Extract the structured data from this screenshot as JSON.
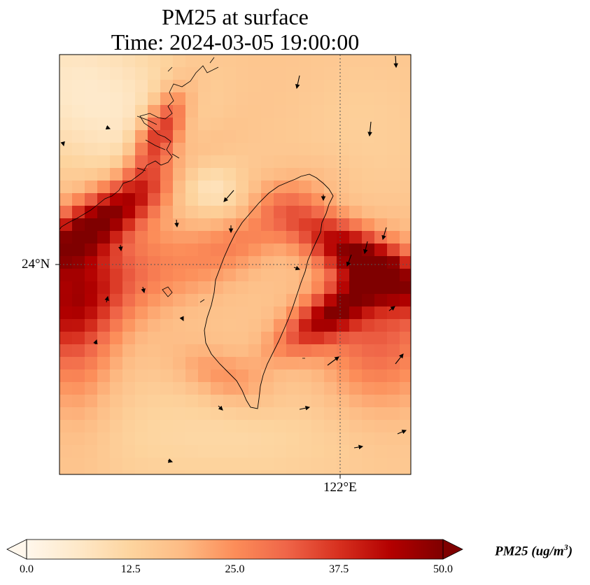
{
  "title": "PM25 at surface",
  "subtitle": "Time: 2024-03-05 19:00:00",
  "axes": {
    "lat_label": "24°N",
    "lon_label": "122°E"
  },
  "colorbar": {
    "label_prefix": "PM25 (ug/m",
    "label_sup": "3",
    "label_suffix": ")",
    "ticks": [
      "0.0",
      "12.5",
      "25.0",
      "37.5",
      "50.0"
    ],
    "min": 0,
    "max": 50,
    "extend": "both",
    "colormap": [
      "#fff7ec",
      "#fee8c8",
      "#fdd49e",
      "#fdbb84",
      "#fc8d59",
      "#ef6548",
      "#d7301f",
      "#b30000",
      "#7f0000"
    ]
  },
  "map": {
    "gridline_lat": 24,
    "gridline_lon": 122,
    "high_concentration_zones": [
      "northwest strait plume",
      "east of Taiwan plume"
    ]
  }
}
